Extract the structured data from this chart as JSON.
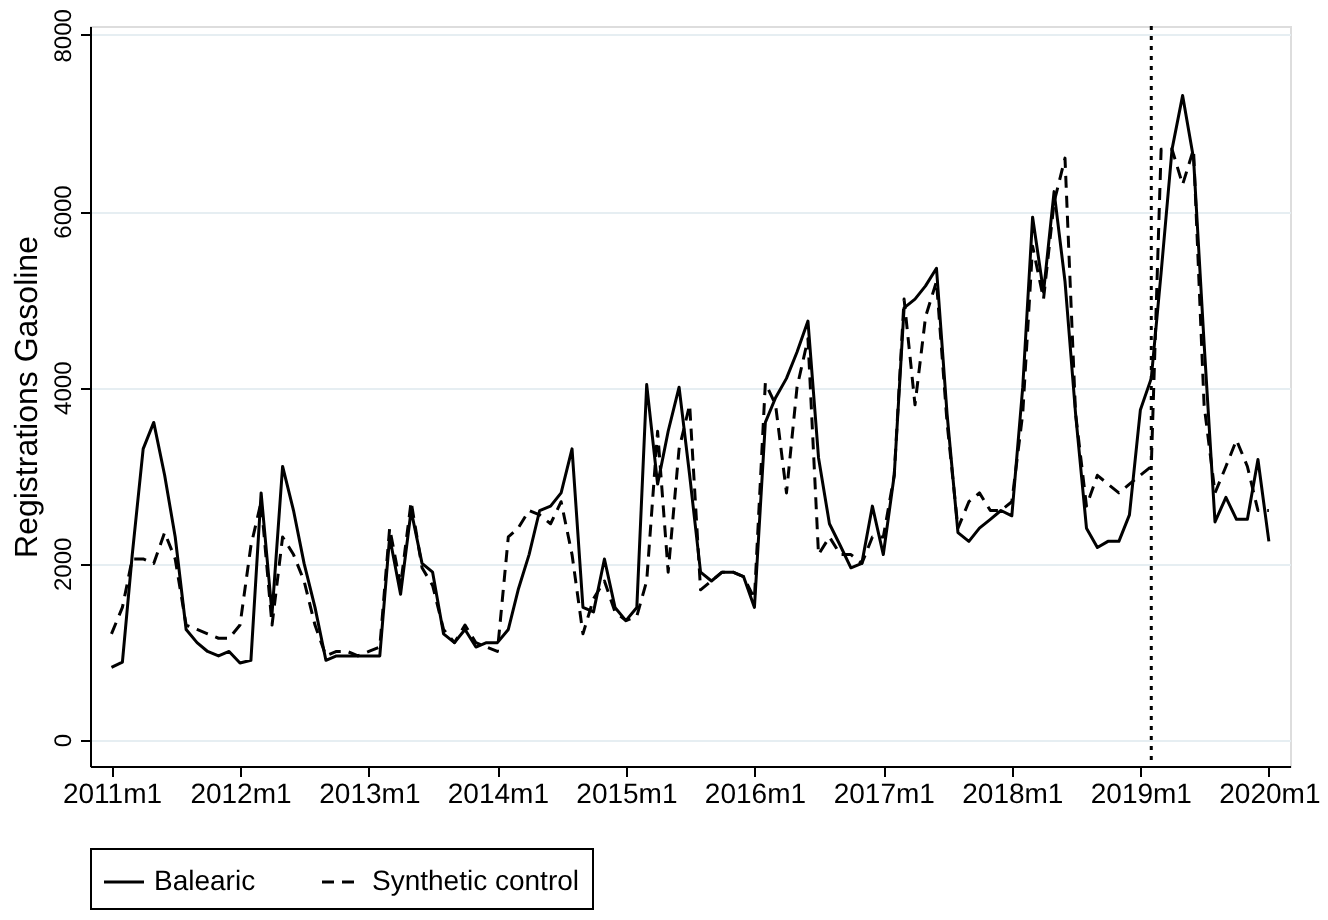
{
  "chart_data": {
    "type": "line",
    "ylabel": "Registrations Gasoline",
    "x": [
      "2011-01",
      "2011-02",
      "2011-03",
      "2011-04",
      "2011-05",
      "2011-06",
      "2011-07",
      "2011-08",
      "2011-09",
      "2011-10",
      "2011-11",
      "2011-12",
      "2012-01",
      "2012-02",
      "2012-03",
      "2012-04",
      "2012-05",
      "2012-06",
      "2012-07",
      "2012-08",
      "2012-09",
      "2012-10",
      "2012-11",
      "2012-12",
      "2013-01",
      "2013-02",
      "2013-03",
      "2013-04",
      "2013-05",
      "2013-06",
      "2013-07",
      "2013-08",
      "2013-09",
      "2013-10",
      "2013-11",
      "2013-12",
      "2014-01",
      "2014-02",
      "2014-03",
      "2014-04",
      "2014-05",
      "2014-06",
      "2014-07",
      "2014-08",
      "2014-09",
      "2014-10",
      "2014-11",
      "2014-12",
      "2015-01",
      "2015-02",
      "2015-03",
      "2015-04",
      "2015-05",
      "2015-06",
      "2015-07",
      "2015-08",
      "2015-09",
      "2015-10",
      "2015-11",
      "2015-12",
      "2016-01",
      "2016-02",
      "2016-03",
      "2016-04",
      "2016-05",
      "2016-06",
      "2016-07",
      "2016-08",
      "2016-09",
      "2016-10",
      "2016-11",
      "2016-12",
      "2017-01",
      "2017-02",
      "2017-03",
      "2017-04",
      "2017-05",
      "2017-06",
      "2017-07",
      "2017-08",
      "2017-09",
      "2017-10",
      "2017-11",
      "2017-12",
      "2018-01",
      "2018-02",
      "2018-03",
      "2018-04",
      "2018-05",
      "2018-06",
      "2018-07",
      "2018-08",
      "2018-09",
      "2018-10",
      "2018-11",
      "2018-12",
      "2019-01",
      "2019-02",
      "2019-03",
      "2019-04",
      "2019-05",
      "2019-06",
      "2019-07",
      "2019-08",
      "2019-09",
      "2019-10",
      "2019-11",
      "2019-12",
      "2020-01"
    ],
    "series": [
      {
        "name": "Balearic",
        "color": "#000000",
        "line_style": "solid",
        "values": [
          820,
          880,
          2100,
          3300,
          3600,
          3000,
          2300,
          1250,
          1100,
          1000,
          950,
          1000,
          870,
          900,
          2800,
          1430,
          3100,
          2600,
          2000,
          1500,
          900,
          950,
          950,
          950,
          950,
          950,
          2300,
          1650,
          2600,
          2000,
          1900,
          1200,
          1100,
          1250,
          1050,
          1100,
          1100,
          1250,
          1700,
          2100,
          2600,
          2650,
          2800,
          3300,
          1500,
          1450,
          2050,
          1500,
          1350,
          1500,
          4030,
          2900,
          3500,
          4000,
          3000,
          1900,
          1800,
          1900,
          1900,
          1850,
          1500,
          3600,
          3880,
          4100,
          4400,
          4750,
          3200,
          2450,
          2200,
          1950,
          2000,
          2650,
          2100,
          3000,
          4900,
          5000,
          5150,
          5350,
          3700,
          2350,
          2250,
          2400,
          2500,
          2600,
          2540,
          4000,
          5930,
          5080,
          6220,
          5200,
          3700,
          2400,
          2180,
          2250,
          2250,
          2550,
          3740,
          4100,
          5300,
          6700,
          7310,
          6600,
          4500,
          2470,
          2750,
          2500,
          2500,
          3180,
          2250
        ]
      },
      {
        "name": "Synthetic control",
        "color": "#000000",
        "line_style": "dashed",
        "values": [
          1200,
          1500,
          2050,
          2050,
          2000,
          2350,
          2050,
          1300,
          1250,
          1200,
          1150,
          1150,
          1300,
          2200,
          2700,
          1300,
          2300,
          2100,
          1800,
          1300,
          950,
          1000,
          1000,
          950,
          1000,
          1050,
          2400,
          1750,
          2700,
          1950,
          1750,
          1250,
          1100,
          1300,
          1100,
          1050,
          1000,
          2300,
          2400,
          2600,
          2550,
          2450,
          2700,
          2100,
          1200,
          1600,
          1800,
          1450,
          1350,
          1400,
          1800,
          3500,
          1900,
          3300,
          3800,
          1700,
          1800,
          1900,
          1900,
          1850,
          1600,
          4050,
          3800,
          2800,
          4000,
          4550,
          2100,
          2300,
          2100,
          2100,
          2000,
          2300,
          2300,
          3000,
          5000,
          3800,
          4800,
          5200,
          3600,
          2400,
          2700,
          2800,
          2600,
          2600,
          2700,
          3700,
          5600,
          5000,
          6100,
          6600,
          3700,
          2650,
          3000,
          2900,
          2800,
          2900,
          3000,
          3100,
          6700,
          6700,
          6300,
          6700,
          3800,
          2800,
          3100,
          3400,
          3100,
          2600,
          2600
        ]
      }
    ],
    "xlim": [
      "2010-11",
      "2020-03"
    ],
    "xticks": [
      {
        "value": "2011-01",
        "label": "2011m1"
      },
      {
        "value": "2012-01",
        "label": "2012m1"
      },
      {
        "value": "2013-01",
        "label": "2013m1"
      },
      {
        "value": "2014-01",
        "label": "2014m1"
      },
      {
        "value": "2015-01",
        "label": "2015m1"
      },
      {
        "value": "2016-01",
        "label": "2016m1"
      },
      {
        "value": "2017-01",
        "label": "2017m1"
      },
      {
        "value": "2018-01",
        "label": "2018m1"
      },
      {
        "value": "2019-01",
        "label": "2019m1"
      },
      {
        "value": "2020-01",
        "label": "2020m1"
      }
    ],
    "ylim": [
      -300,
      8100
    ],
    "yticks": [
      0,
      2000,
      4000,
      6000,
      8000
    ],
    "grid": "y",
    "legend": "bottom",
    "marker": "none",
    "ref_lines": [
      {
        "axis": "x",
        "value": "2019-02",
        "label": null,
        "color": "#000000",
        "line_style": "dotted"
      }
    ]
  }
}
